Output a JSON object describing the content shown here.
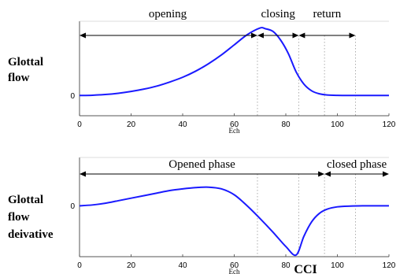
{
  "chart_data": [
    {
      "type": "line",
      "side_label": [
        "Glottal",
        "flow"
      ],
      "xlabel": "Ech",
      "xlim": [
        0,
        120
      ],
      "x_ticks": [
        0,
        20,
        40,
        60,
        80,
        100,
        120
      ],
      "ylim": [
        -0.3,
        1.1
      ],
      "y_ticks": [
        {
          "value": 0,
          "label": "0"
        }
      ],
      "grid": false,
      "series_color": "#1a1aff",
      "x": [
        0,
        5,
        10,
        15,
        20,
        25,
        30,
        35,
        40,
        45,
        50,
        55,
        60,
        65,
        70,
        72,
        75,
        78,
        81,
        84,
        87,
        90,
        93,
        96,
        100,
        105,
        110,
        115,
        120
      ],
      "values": [
        0,
        0.004,
        0.015,
        0.033,
        0.06,
        0.095,
        0.14,
        0.2,
        0.27,
        0.36,
        0.47,
        0.6,
        0.75,
        0.9,
        1.0,
        0.99,
        0.95,
        0.82,
        0.62,
        0.35,
        0.17,
        0.07,
        0.025,
        0.008,
        0.002,
        0,
        0,
        0,
        0
      ],
      "phase_marks": [
        69,
        85,
        95,
        107
      ],
      "phases": [
        {
          "label": "opening",
          "from": 0,
          "to": 69
        },
        {
          "label": "closing",
          "from": 69,
          "to": 85
        },
        {
          "label": "return",
          "from": 85,
          "to": 107
        }
      ]
    },
    {
      "type": "line",
      "side_label": [
        "Glottal",
        "flow",
        "deivative"
      ],
      "xlabel": "Ech",
      "xlim": [
        0,
        120
      ],
      "x_ticks": [
        0,
        20,
        40,
        60,
        80,
        100,
        120
      ],
      "ylim": [
        -0.6,
        0.57
      ],
      "y_ticks": [
        {
          "value": 0,
          "label": "0"
        }
      ],
      "grid": false,
      "series_color": "#1a1aff",
      "x": [
        0,
        5,
        10,
        15,
        20,
        25,
        30,
        35,
        40,
        45,
        50,
        55,
        60,
        65,
        70,
        75,
        80,
        84,
        87,
        90,
        93,
        96,
        100,
        105,
        110,
        115,
        120
      ],
      "values": [
        0,
        0.01,
        0.03,
        0.06,
        0.09,
        0.12,
        0.15,
        0.18,
        0.2,
        0.215,
        0.22,
        0.2,
        0.13,
        0.0,
        -0.15,
        -0.31,
        -0.48,
        -0.58,
        -0.36,
        -0.19,
        -0.09,
        -0.04,
        -0.012,
        -0.003,
        0,
        0,
        0
      ],
      "phase_marks": [
        69,
        85,
        95,
        107
      ],
      "phases": [
        {
          "label": "Opened phase",
          "from": 0,
          "to": 95
        },
        {
          "label": "closed phase",
          "from": 95,
          "to": 120
        }
      ],
      "annotations": [
        {
          "text": "CCI",
          "x": 84
        }
      ]
    }
  ]
}
